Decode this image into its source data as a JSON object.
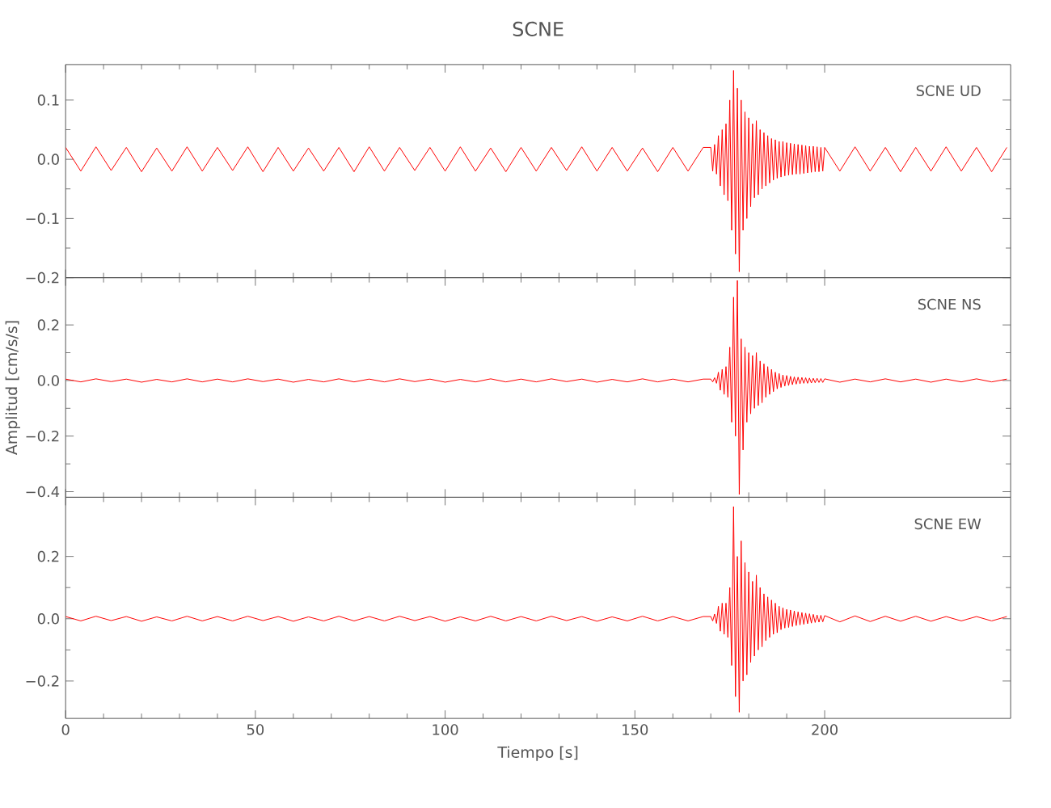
{
  "chart_data": [
    {
      "type": "line",
      "title": "SCNE",
      "tick_labels": "y",
      "marker": "none",
      "line_style": "solid",
      "grid": false,
      "legend": false,
      "xlim": [
        0,
        249
      ],
      "xticks": [
        0,
        50,
        100,
        150,
        200
      ],
      "ylim": [
        -0.2,
        0.16
      ],
      "yticks": [
        {
          "value": -0.2,
          "label": "−0.2"
        },
        {
          "value": -0.1,
          "label": "−0.1"
        },
        {
          "value": 0,
          "label": "0.0"
        },
        {
          "value": 0.1,
          "label": "0.1"
        }
      ],
      "x": [
        0,
        4,
        8,
        12,
        16,
        20,
        24,
        28,
        32,
        36,
        40,
        44,
        48,
        52,
        56,
        60,
        64,
        68,
        72,
        76,
        80,
        84,
        88,
        92,
        96,
        100,
        104,
        108,
        112,
        116,
        120,
        124,
        128,
        132,
        136,
        140,
        144,
        148,
        152,
        156,
        160,
        164,
        168,
        170,
        170.5,
        171,
        171.5,
        172,
        172.5,
        173,
        173.5,
        174,
        174.5,
        175,
        175.5,
        176,
        176.5,
        177,
        177.5,
        178,
        178.5,
        179,
        179.5,
        180,
        180.5,
        181,
        181.5,
        182,
        182.5,
        183,
        183.5,
        184,
        184.5,
        185,
        185.5,
        186,
        186.5,
        187,
        187.5,
        188,
        188.5,
        189,
        189.5,
        190,
        190.5,
        191,
        191.5,
        192,
        192.5,
        193,
        193.5,
        194,
        194.5,
        195,
        195.5,
        196,
        196.5,
        197,
        197.5,
        198,
        198.5,
        199,
        199.5,
        200,
        204,
        208,
        212,
        216,
        220,
        224,
        228,
        232,
        236,
        240,
        244,
        248
      ],
      "series": [
        {
          "name": "SCNE   UD",
          "color": "#ff0000",
          "values": [
            0.02,
            -0.02,
            0.021,
            -0.019,
            0.02,
            -0.021,
            0.019,
            -0.02,
            0.021,
            -0.02,
            0.02,
            -0.019,
            0.021,
            -0.021,
            0.02,
            -0.02,
            0.019,
            -0.02,
            0.02,
            -0.021,
            0.021,
            -0.02,
            0.02,
            -0.019,
            0.02,
            -0.02,
            0.021,
            -0.02,
            0.019,
            -0.021,
            0.02,
            -0.02,
            0.02,
            -0.019,
            0.021,
            -0.02,
            0.02,
            -0.02,
            0.019,
            -0.021,
            0.02,
            -0.02,
            0.02,
            0.02,
            -0.02,
            0.025,
            -0.025,
            0.04,
            -0.045,
            0.05,
            -0.06,
            0.06,
            -0.07,
            0.1,
            -0.12,
            0.15,
            -0.16,
            0.12,
            -0.19,
            0.1,
            -0.12,
            0.08,
            -0.1,
            0.07,
            -0.08,
            0.06,
            -0.065,
            0.065,
            -0.06,
            0.05,
            -0.05,
            0.045,
            -0.045,
            0.04,
            -0.04,
            0.035,
            -0.035,
            0.033,
            -0.032,
            0.03,
            -0.03,
            0.03,
            -0.028,
            0.028,
            -0.027,
            0.027,
            -0.026,
            0.026,
            -0.025,
            0.025,
            -0.025,
            0.024,
            -0.024,
            0.023,
            -0.023,
            0.022,
            -0.022,
            0.022,
            -0.021,
            0.021,
            -0.021,
            0.02,
            -0.02,
            0.02,
            -0.02,
            0.021,
            -0.02,
            0.02,
            -0.021,
            0.02,
            -0.02,
            0.021,
            -0.02,
            0.02,
            -0.021,
            0.02
          ]
        }
      ]
    },
    {
      "type": "line",
      "ylabel": "Amplitud [cm/s/s]",
      "tick_labels": "y",
      "marker": "none",
      "line_style": "solid",
      "grid": false,
      "legend": false,
      "xlim": [
        0,
        249
      ],
      "xticks": [
        0,
        50,
        100,
        150,
        200
      ],
      "ylim": [
        -0.42,
        0.37
      ],
      "yticks": [
        {
          "value": -0.4,
          "label": "−0.4"
        },
        {
          "value": -0.2,
          "label": "−0.2"
        },
        {
          "value": 0,
          "label": "0.0"
        },
        {
          "value": 0.2,
          "label": "0.2"
        }
      ],
      "x": [
        0,
        4,
        8,
        12,
        16,
        20,
        24,
        28,
        32,
        36,
        40,
        44,
        48,
        52,
        56,
        60,
        64,
        68,
        72,
        76,
        80,
        84,
        88,
        92,
        96,
        100,
        104,
        108,
        112,
        116,
        120,
        124,
        128,
        132,
        136,
        140,
        144,
        148,
        152,
        156,
        160,
        164,
        168,
        170,
        170.5,
        171,
        171.5,
        172,
        172.5,
        173,
        173.5,
        174,
        174.5,
        175,
        175.5,
        176,
        176.5,
        177,
        177.5,
        178,
        178.5,
        179,
        179.5,
        180,
        180.5,
        181,
        181.5,
        182,
        182.5,
        183,
        183.5,
        184,
        184.5,
        185,
        185.5,
        186,
        186.5,
        187,
        187.5,
        188,
        188.5,
        189,
        189.5,
        190,
        190.5,
        191,
        191.5,
        192,
        192.5,
        193,
        193.5,
        194,
        194.5,
        195,
        195.5,
        196,
        196.5,
        197,
        197.5,
        198,
        198.5,
        199,
        199.5,
        200,
        204,
        208,
        212,
        216,
        220,
        224,
        228,
        232,
        236,
        240,
        244,
        248
      ],
      "series": [
        {
          "name": "SCNE   NS",
          "color": "#ff0000",
          "values": [
            0.005,
            -0.005,
            0.006,
            -0.004,
            0.005,
            -0.006,
            0.004,
            -0.005,
            0.006,
            -0.005,
            0.005,
            -0.005,
            0.006,
            -0.004,
            0.005,
            -0.006,
            0.004,
            -0.005,
            0.006,
            -0.005,
            0.005,
            -0.005,
            0.006,
            -0.004,
            0.005,
            -0.006,
            0.004,
            -0.005,
            0.006,
            -0.005,
            0.005,
            -0.005,
            0.006,
            -0.004,
            0.005,
            -0.006,
            0.004,
            -0.005,
            0.006,
            -0.005,
            0.005,
            -0.005,
            0.005,
            0.005,
            -0.005,
            0.01,
            -0.01,
            0.03,
            -0.035,
            0.04,
            -0.05,
            0.05,
            -0.06,
            0.12,
            -0.15,
            0.3,
            -0.2,
            0.36,
            -0.41,
            0.15,
            -0.25,
            0.12,
            -0.15,
            0.1,
            -0.12,
            0.09,
            -0.1,
            0.1,
            -0.09,
            0.07,
            -0.08,
            0.06,
            -0.06,
            0.05,
            -0.05,
            0.04,
            -0.04,
            0.03,
            -0.03,
            0.025,
            -0.025,
            0.02,
            -0.02,
            0.018,
            -0.018,
            0.015,
            -0.015,
            0.013,
            -0.013,
            0.012,
            -0.012,
            0.011,
            -0.01,
            0.01,
            -0.01,
            0.009,
            -0.009,
            0.008,
            -0.008,
            0.008,
            -0.007,
            0.007,
            -0.007,
            0.006,
            -0.006,
            0.005,
            -0.005,
            0.006,
            -0.005,
            0.005,
            -0.006,
            0.005,
            -0.005,
            0.006,
            -0.005,
            0.005
          ]
        }
      ]
    },
    {
      "type": "line",
      "xlabel": "Tiempo [s]",
      "marker": "none",
      "line_style": "solid",
      "grid": false,
      "legend": false,
      "xlim": [
        0,
        249
      ],
      "xticks": [
        0,
        50,
        100,
        150,
        200
      ],
      "ylim": [
        -0.32,
        0.39
      ],
      "yticks": [
        {
          "value": -0.2,
          "label": "−0.2"
        },
        {
          "value": 0,
          "label": "0.0"
        },
        {
          "value": 0.2,
          "label": "0.2"
        }
      ],
      "x": [
        0,
        4,
        8,
        12,
        16,
        20,
        24,
        28,
        32,
        36,
        40,
        44,
        48,
        52,
        56,
        60,
        64,
        68,
        72,
        76,
        80,
        84,
        88,
        92,
        96,
        100,
        104,
        108,
        112,
        116,
        120,
        124,
        128,
        132,
        136,
        140,
        144,
        148,
        152,
        156,
        160,
        164,
        168,
        170,
        170.5,
        171,
        171.5,
        172,
        172.5,
        173,
        173.5,
        174,
        174.5,
        175,
        175.5,
        176,
        176.5,
        177,
        177.5,
        178,
        178.5,
        179,
        179.5,
        180,
        180.5,
        181,
        181.5,
        182,
        182.5,
        183,
        183.5,
        184,
        184.5,
        185,
        185.5,
        186,
        186.5,
        187,
        187.5,
        188,
        188.5,
        189,
        189.5,
        190,
        190.5,
        191,
        191.5,
        192,
        192.5,
        193,
        193.5,
        194,
        194.5,
        195,
        195.5,
        196,
        196.5,
        197,
        197.5,
        198,
        198.5,
        199,
        199.5,
        200,
        204,
        208,
        212,
        216,
        220,
        224,
        228,
        232,
        236,
        240,
        244,
        248
      ],
      "series": [
        {
          "name": "SCNE   EW",
          "color": "#ff0000",
          "values": [
            0.007,
            -0.007,
            0.008,
            -0.006,
            0.007,
            -0.008,
            0.006,
            -0.007,
            0.008,
            -0.007,
            0.007,
            -0.007,
            0.008,
            -0.006,
            0.007,
            -0.008,
            0.006,
            -0.007,
            0.008,
            -0.007,
            0.007,
            -0.007,
            0.008,
            -0.006,
            0.007,
            -0.008,
            0.006,
            -0.007,
            0.008,
            -0.007,
            0.007,
            -0.007,
            0.008,
            -0.006,
            0.007,
            -0.008,
            0.006,
            -0.007,
            0.008,
            -0.007,
            0.007,
            -0.007,
            0.007,
            0.007,
            -0.007,
            0.015,
            -0.015,
            0.04,
            -0.04,
            0.05,
            -0.05,
            0.05,
            -0.06,
            0.1,
            -0.15,
            0.36,
            -0.25,
            0.2,
            -0.3,
            0.25,
            -0.2,
            0.18,
            -0.18,
            0.15,
            -0.14,
            0.12,
            -0.12,
            0.14,
            -0.1,
            0.1,
            -0.09,
            0.08,
            -0.07,
            0.07,
            -0.06,
            0.06,
            -0.05,
            0.05,
            -0.045,
            0.04,
            -0.035,
            0.035,
            -0.03,
            0.03,
            -0.028,
            0.028,
            -0.025,
            0.025,
            -0.022,
            0.022,
            -0.02,
            0.02,
            -0.018,
            0.018,
            -0.016,
            0.016,
            -0.014,
            0.014,
            -0.012,
            0.012,
            -0.011,
            0.011,
            -0.01,
            0.01,
            -0.01,
            0.009,
            -0.009,
            0.008,
            -0.008,
            0.008,
            -0.008,
            0.007,
            -0.007,
            0.007,
            -0.007,
            0.007
          ]
        }
      ]
    }
  ]
}
